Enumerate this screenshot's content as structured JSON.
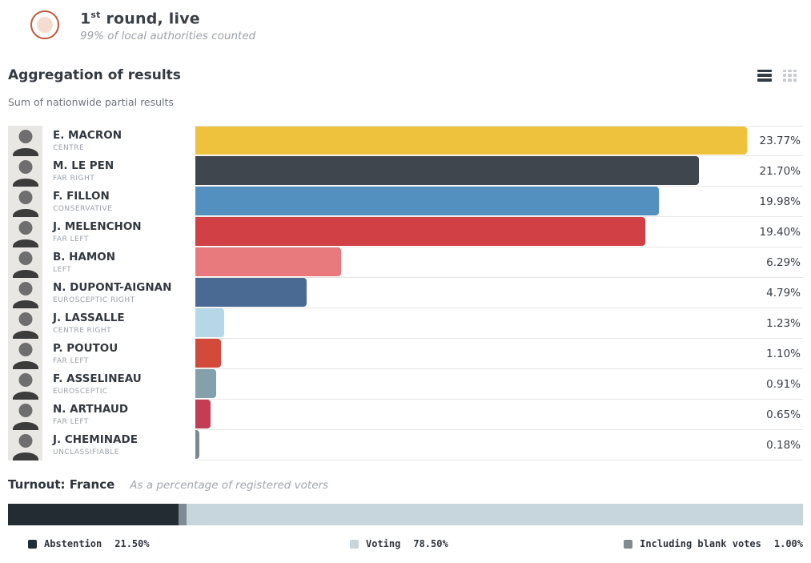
{
  "header": {
    "title_number": "1",
    "title_sup": "st",
    "title_rest": " round, live",
    "subtitle": "99% of local authorities counted",
    "icon_ring_color": "#c0593c",
    "icon_fill_color": "#f5dcd0"
  },
  "results": {
    "title": "Aggregation of results",
    "subtitle": "Sum of nationwide partial results",
    "view_icons": [
      "list-view",
      "grid-view"
    ]
  },
  "chart_data": [
    {
      "type": "bar",
      "orientation": "horizontal",
      "title": "Aggregation of results",
      "subtitle": "Sum of nationwide partial results",
      "categories": [
        "E. MACRON",
        "M. LE PEN",
        "F. FILLON",
        "J. MELENCHON",
        "B. HAMON",
        "N. DUPONT-AIGNAN",
        "J. LASSALLE",
        "P. POUTOU",
        "F. ASSELINEAU",
        "N. ARTHAUD",
        "J. CHEMINADE"
      ],
      "category_sublabels": [
        "CENTRE",
        "FAR RIGHT",
        "CONSERVATIVE",
        "FAR LEFT",
        "LEFT",
        "EUROSCEPTIC RIGHT",
        "CENTRE RIGHT",
        "FAR LEFT",
        "EUROSCEPTIC",
        "FAR LEFT",
        "UNCLASSIFIABLE"
      ],
      "values": [
        23.77,
        21.7,
        19.98,
        19.4,
        6.29,
        4.79,
        1.23,
        1.1,
        0.91,
        0.65,
        0.18
      ],
      "value_labels": [
        "23.77%",
        "21.70%",
        "19.98%",
        "19.40%",
        "6.29%",
        "4.79%",
        "1.23%",
        "1.10%",
        "0.91%",
        "0.65%",
        "0.18%"
      ],
      "bar_colors": [
        "#eec23d",
        "#3f464e",
        "#5390bf",
        "#d04045",
        "#e87a7e",
        "#4b6a93",
        "#b5d7e8",
        "#d14a3a",
        "#84a0ad",
        "#c13e55",
        "#7d8893"
      ],
      "xlim": [
        0,
        26.2
      ],
      "grid": false,
      "legend_position": "none"
    },
    {
      "type": "bar",
      "variant": "stacked-single-row",
      "title": "Turnout: France",
      "note": "As a percentage of registered voters",
      "segments": [
        {
          "name": "Abstention",
          "value": 21.5,
          "color": "#232b33"
        },
        {
          "name": "Including blank votes",
          "value": 1.0,
          "color": "#7e8a94"
        },
        {
          "name": "Voting",
          "value": 77.5,
          "color": "#c7d5dc"
        }
      ],
      "legend": [
        {
          "label": "Abstention",
          "value_label": "21.50%",
          "color": "#232b33"
        },
        {
          "label": "Voting",
          "value_label": "78.50%",
          "color": "#c7d5dc"
        },
        {
          "label": "Including blank votes",
          "value_label": "1.00%",
          "color": "#7e8a94"
        }
      ],
      "legend_position": "bottom"
    }
  ]
}
